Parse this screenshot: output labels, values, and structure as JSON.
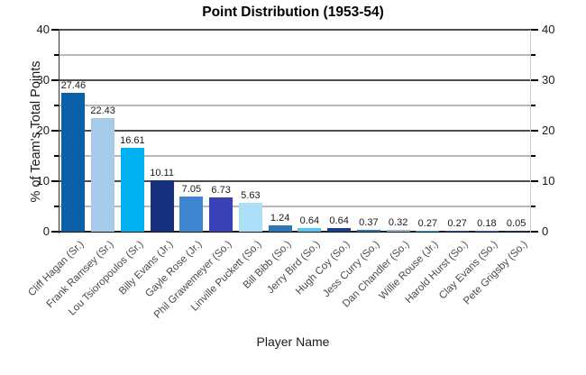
{
  "chart_data": {
    "type": "bar",
    "title": "Point Distribution (1953-54)",
    "xlabel": "Player Name",
    "ylabel": "% of Team's Total Points",
    "ylim": [
      0,
      40
    ],
    "yticks_major": [
      0,
      10,
      20,
      30,
      40
    ],
    "yticks_minor": [
      5,
      15,
      25,
      35
    ],
    "grid": true,
    "legend_position": "none",
    "categories": [
      "Cliff Hagan (Sr.)",
      "Frank Ramsey (Sr.)",
      "Lou Tsioropoulos (Sr.)",
      "Billy Evans (Jr.)",
      "Gayle Rose (Jr.)",
      "Phil Grawemeyer (So.)",
      "Linville Puckett (So.)",
      "Bill Bibb (So.)",
      "Jerry Bird (So.)",
      "Hugh Coy (So.)",
      "Jess Curry (So.)",
      "Dan Chandler (So.)",
      "Willie Rouse (Jr.)",
      "Harold Hurst (So.)",
      "Clay Evans (So.)",
      "Pete Grigsby (So.)"
    ],
    "values": [
      27.46,
      22.43,
      16.61,
      10.11,
      7.05,
      6.73,
      5.63,
      1.24,
      0.64,
      0.64,
      0.37,
      0.32,
      0.27,
      0.27,
      0.18,
      0.05
    ],
    "value_labels": [
      "27.46",
      "22.43",
      "16.61",
      "10.11",
      "7.05",
      "6.73",
      "5.63",
      "1.24",
      "0.64",
      "0.64",
      "0.37",
      "0.32",
      "0.27",
      "0.27",
      "0.18",
      "0.05"
    ],
    "bar_colors": [
      "#0b61a8",
      "#a6cbea",
      "#00b0f0",
      "#17317f",
      "#3e87d0",
      "#3a40b6",
      "#abdff7",
      "#2e76b5",
      "#54c6f0",
      "#1c3c96",
      "#2e74b5",
      "#9eb6ce",
      "#2ba9dd",
      "#2e4f9e",
      "#3a6ab0",
      "#1f3864"
    ],
    "colors": {
      "background": "#ffffff",
      "grid_major": "#4d4d4d",
      "grid_minor": "#b8b8b8",
      "axis_line": "#1a1a1a",
      "border_left": "#333333",
      "border_right": "#cccccc",
      "title_text": "#000000",
      "tick_text": "#1a1a1a",
      "category_text": "#4a4a4a"
    }
  }
}
